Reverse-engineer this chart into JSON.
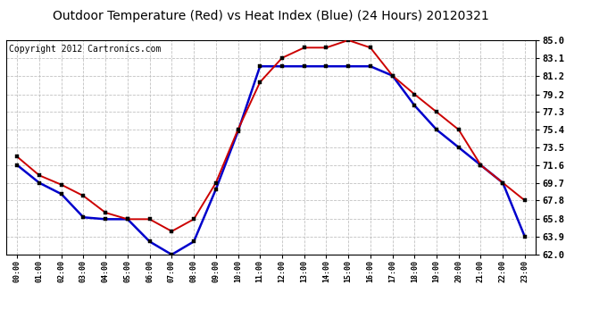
{
  "title": "Outdoor Temperature (Red) vs Heat Index (Blue) (24 Hours) 20120321",
  "copyright": "Copyright 2012 Cartronics.com",
  "x_labels": [
    "00:00",
    "01:00",
    "02:00",
    "03:00",
    "04:00",
    "05:00",
    "06:00",
    "07:00",
    "08:00",
    "09:00",
    "10:00",
    "11:00",
    "12:00",
    "13:00",
    "14:00",
    "15:00",
    "16:00",
    "17:00",
    "18:00",
    "19:00",
    "20:00",
    "21:00",
    "22:00",
    "23:00"
  ],
  "temp_red": [
    72.5,
    70.5,
    69.5,
    68.3,
    66.5,
    65.8,
    65.8,
    64.5,
    65.8,
    69.7,
    75.4,
    80.5,
    83.1,
    84.2,
    84.2,
    85.0,
    84.2,
    81.2,
    79.2,
    77.3,
    75.4,
    71.6,
    69.7,
    67.8
  ],
  "heat_blue": [
    71.6,
    69.7,
    68.5,
    66.0,
    65.8,
    65.8,
    63.4,
    62.0,
    63.4,
    69.0,
    75.2,
    82.2,
    82.2,
    82.2,
    82.2,
    82.2,
    82.2,
    81.2,
    78.0,
    75.4,
    73.5,
    71.6,
    69.7,
    63.9
  ],
  "ylim_min": 62.0,
  "ylim_max": 85.0,
  "yticks": [
    62.0,
    63.9,
    65.8,
    67.8,
    69.7,
    71.6,
    73.5,
    75.4,
    77.3,
    79.2,
    81.2,
    83.1,
    85.0
  ],
  "bg_color": "#ffffff",
  "grid_color": "#bbbbbb",
  "red_color": "#cc0000",
  "blue_color": "#0000cc",
  "title_fontsize": 10,
  "copyright_fontsize": 7
}
